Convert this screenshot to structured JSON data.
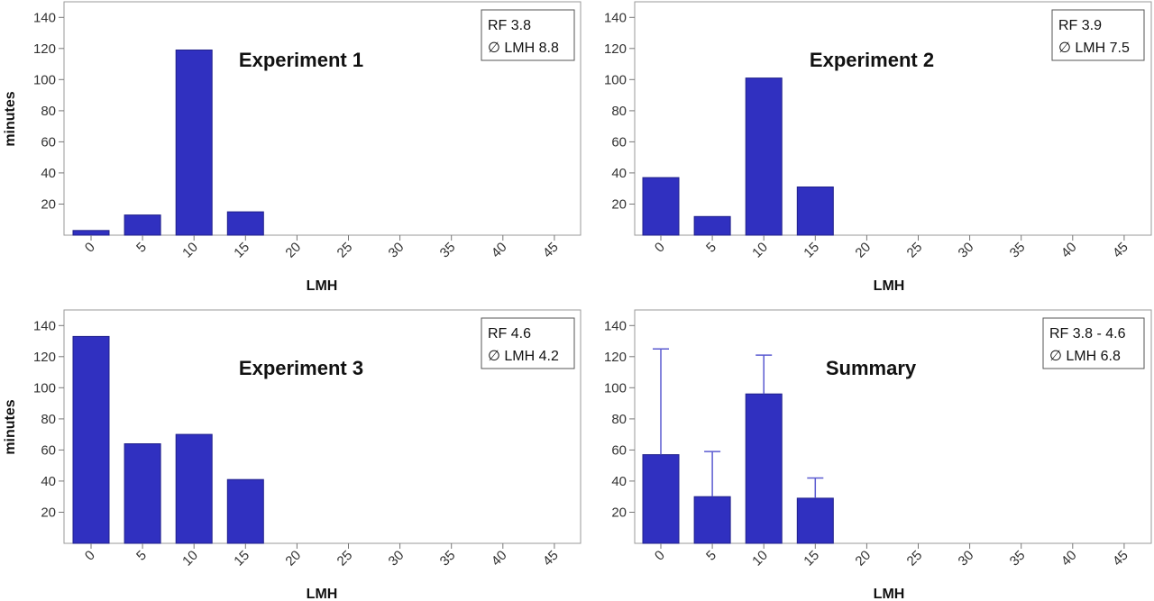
{
  "colors": {
    "bar": "#3030c0",
    "bar_stroke": "#20208a",
    "error_bar": "#5a5ad0",
    "frame": "#9a9a9a"
  },
  "chart_data": [
    {
      "type": "bar",
      "title": "Experiment 1",
      "xlabel": "LMH",
      "ylabel": "minutes",
      "categories": [
        "0",
        "5",
        "10",
        "15",
        "20",
        "25",
        "30",
        "35",
        "40",
        "45"
      ],
      "values": [
        3,
        13,
        119,
        15,
        0,
        0,
        0,
        0,
        0,
        0
      ],
      "ylim": [
        0,
        150
      ],
      "yticks": [
        "20",
        "40",
        "60",
        "80",
        "100",
        "120",
        "140"
      ],
      "legend": {
        "line1": "RF 3.8",
        "line2": "∅ LMH 8.8",
        "placement": "top-right"
      }
    },
    {
      "type": "bar",
      "title": "Experiment 2",
      "xlabel": "LMH",
      "ylabel": "",
      "categories": [
        "0",
        "5",
        "10",
        "15",
        "20",
        "25",
        "30",
        "35",
        "40",
        "45"
      ],
      "values": [
        37,
        12,
        101,
        31,
        0,
        0,
        0,
        0,
        0,
        0
      ],
      "ylim": [
        0,
        150
      ],
      "yticks": [
        "20",
        "40",
        "60",
        "80",
        "100",
        "120",
        "140"
      ],
      "legend": {
        "line1": "RF 3.9",
        "line2": "∅ LMH 7.5",
        "placement": "top-right"
      }
    },
    {
      "type": "bar",
      "title": "Experiment 3",
      "xlabel": "LMH",
      "ylabel": "minutes",
      "categories": [
        "0",
        "5",
        "10",
        "15",
        "20",
        "25",
        "30",
        "35",
        "40",
        "45"
      ],
      "values": [
        133,
        64,
        70,
        41,
        0,
        0,
        0,
        0,
        0,
        0
      ],
      "ylim": [
        0,
        150
      ],
      "yticks": [
        "20",
        "40",
        "60",
        "80",
        "100",
        "120",
        "140"
      ],
      "legend": {
        "line1": "RF 4.6",
        "line2": "∅ LMH 4.2",
        "placement": "top-right"
      }
    },
    {
      "type": "bar",
      "title": "Summary",
      "xlabel": "LMH",
      "ylabel": "",
      "categories": [
        "0",
        "5",
        "10",
        "15",
        "20",
        "25",
        "30",
        "35",
        "40",
        "45"
      ],
      "values": [
        57,
        30,
        96,
        29,
        0,
        0,
        0,
        0,
        0,
        0
      ],
      "error_upper": [
        125,
        59,
        121,
        42,
        null,
        null,
        null,
        null,
        null,
        null
      ],
      "ylim": [
        0,
        150
      ],
      "yticks": [
        "20",
        "40",
        "60",
        "80",
        "100",
        "120",
        "140"
      ],
      "legend": {
        "line1": "RF 3.8 - 4.6",
        "line2": "∅ LMH 6.8",
        "placement": "top-right"
      }
    }
  ]
}
